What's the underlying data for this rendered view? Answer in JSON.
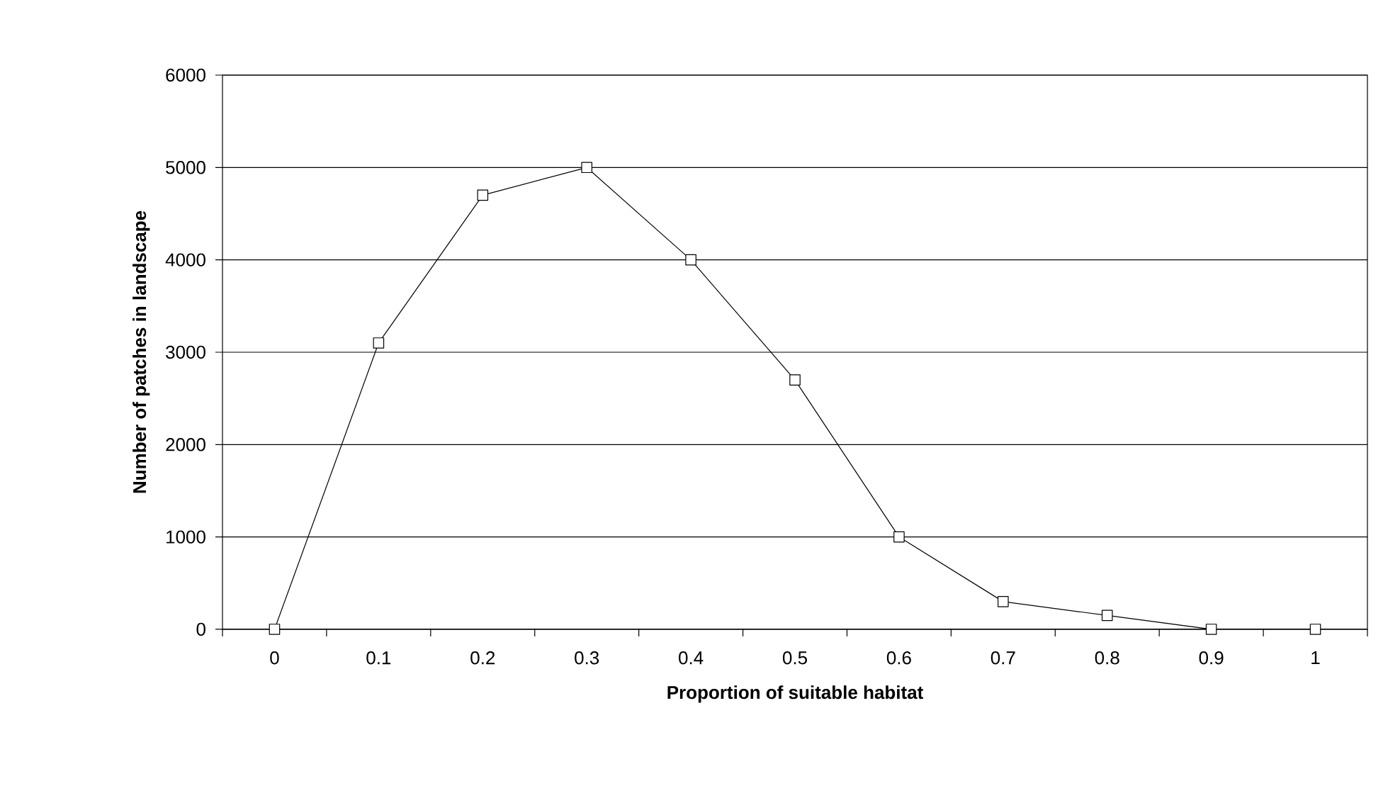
{
  "chart_data": {
    "type": "line",
    "xlabel": "Proportion of suitable habitat",
    "ylabel": "Number of patches in landscape",
    "categories": [
      "0",
      "0.1",
      "0.2",
      "0.3",
      "0.4",
      "0.5",
      "0.6",
      "0.7",
      "0.8",
      "0.9",
      "1"
    ],
    "values": [
      0,
      3100,
      4700,
      5000,
      4000,
      2700,
      1000,
      300,
      150,
      0,
      0
    ],
    "color": "#000000",
    "marker": "square",
    "line_style": "solid",
    "ylim": [
      0,
      6000
    ],
    "yticks": [
      0,
      1000,
      2000,
      3000,
      4000,
      5000,
      6000
    ],
    "grid": "y"
  }
}
